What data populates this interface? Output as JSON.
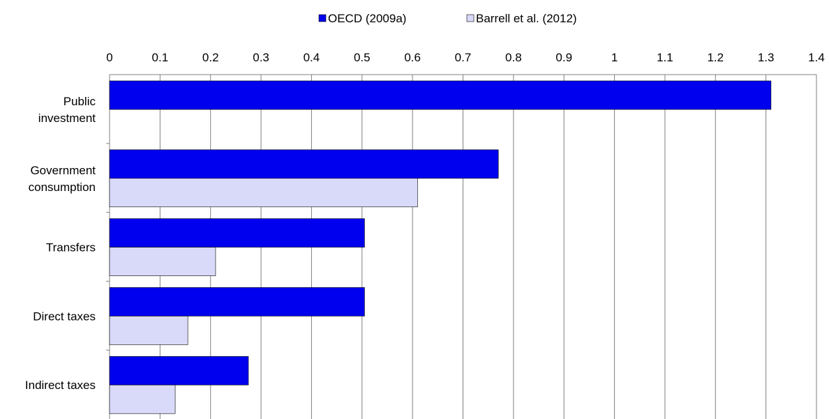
{
  "chart_data": {
    "type": "bar",
    "orientation": "horizontal",
    "x_axis_position": "top",
    "xlim": [
      0,
      1.4
    ],
    "ticks": [
      "0",
      "0.1",
      "0.2",
      "0.3",
      "0.4",
      "0.5",
      "0.6",
      "0.7",
      "0.8",
      "0.9",
      "1",
      "1.1",
      "1.2",
      "1.3",
      "1.4"
    ],
    "grid": "vertical",
    "legend_position": "top",
    "categories": [
      [
        "Public",
        "investment"
      ],
      [
        "Government",
        "consumption"
      ],
      [
        "Transfers"
      ],
      [
        "Direct taxes"
      ],
      [
        "Indirect taxes"
      ]
    ],
    "series": [
      {
        "name": "OECD (2009a)",
        "color": "#0000ee",
        "values": [
          1.31,
          0.77,
          0.505,
          0.505,
          0.275
        ]
      },
      {
        "name": "Barrell et al. (2012)",
        "color": "#d9d9fa",
        "values": [
          null,
          0.61,
          0.21,
          0.155,
          0.13
        ]
      }
    ]
  }
}
